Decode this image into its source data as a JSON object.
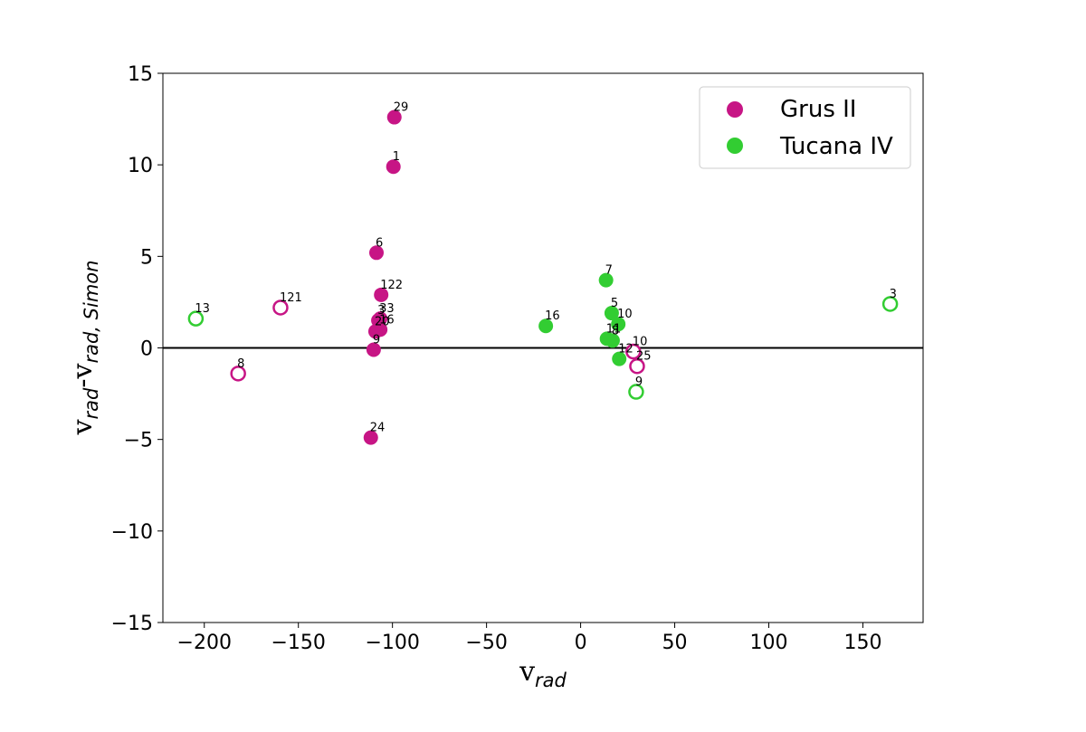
{
  "chart_data": {
    "type": "scatter",
    "title": "",
    "xlabel": {
      "main": "v",
      "sub": "rad"
    },
    "ylabel": {
      "main": "v",
      "sub": "rad",
      "sep": "-",
      "main2": "v",
      "sub2": "rad, Simon"
    },
    "xlim": [
      -222,
      182
    ],
    "ylim": [
      -15,
      15
    ],
    "xticks": [
      {
        "value": -200,
        "label": "−200"
      },
      {
        "value": -150,
        "label": "−150"
      },
      {
        "value": -100,
        "label": "−100"
      },
      {
        "value": -50,
        "label": "−50"
      },
      {
        "value": 0,
        "label": "0"
      },
      {
        "value": 50,
        "label": "50"
      },
      {
        "value": 100,
        "label": "100"
      },
      {
        "value": 150,
        "label": "150"
      }
    ],
    "yticks": [
      {
        "value": -15,
        "label": "−15"
      },
      {
        "value": -10,
        "label": "−10"
      },
      {
        "value": -5,
        "label": "−5"
      },
      {
        "value": 0,
        "label": "0"
      },
      {
        "value": 5,
        "label": "5"
      },
      {
        "value": 10,
        "label": "10"
      },
      {
        "value": 15,
        "label": "15"
      }
    ],
    "zero_line": 0,
    "legend": {
      "position": "top-right"
    },
    "series": [
      {
        "name": "Grus II",
        "color": "#c71585",
        "points": [
          {
            "x": -99,
            "y": 12.6,
            "label": "29",
            "filled": true
          },
          {
            "x": -99.5,
            "y": 9.9,
            "label": "1",
            "filled": true
          },
          {
            "x": -108.5,
            "y": 5.2,
            "label": "6",
            "filled": true
          },
          {
            "x": -106,
            "y": 2.9,
            "label": "122",
            "filled": true
          },
          {
            "x": -106.5,
            "y": 1.6,
            "label": "33",
            "filled": true
          },
          {
            "x": -107.5,
            "y": 1.5,
            "label": "3",
            "filled": true
          },
          {
            "x": -106.5,
            "y": 1.0,
            "label": "16",
            "filled": true
          },
          {
            "x": -109,
            "y": 0.9,
            "label": "20",
            "filled": true
          },
          {
            "x": -110,
            "y": -0.1,
            "label": "9",
            "filled": true
          },
          {
            "x": -111.5,
            "y": -4.9,
            "label": "24",
            "filled": true
          },
          {
            "x": -159.5,
            "y": 2.2,
            "label": "121",
            "filled": false
          },
          {
            "x": -182,
            "y": -1.4,
            "label": "8",
            "filled": false
          },
          {
            "x": 28,
            "y": -0.2,
            "label": "10",
            "filled": false
          },
          {
            "x": 30,
            "y": -1.0,
            "label": "25",
            "filled": false
          }
        ]
      },
      {
        "name": "Tucana IV",
        "color": "#32cd32",
        "points": [
          {
            "x": 13.5,
            "y": 3.7,
            "label": "7",
            "filled": true
          },
          {
            "x": 16.5,
            "y": 1.9,
            "label": "5",
            "filled": true
          },
          {
            "x": 20,
            "y": 1.3,
            "label": "10",
            "filled": true
          },
          {
            "x": -18.5,
            "y": 1.2,
            "label": "16",
            "filled": true
          },
          {
            "x": 14,
            "y": 0.5,
            "label": "11",
            "filled": true
          },
          {
            "x": 17,
            "y": 0.4,
            "label": "8",
            "filled": true
          },
          {
            "x": 20.5,
            "y": -0.6,
            "label": "12",
            "filled": true
          },
          {
            "x": 29.5,
            "y": -2.4,
            "label": "9",
            "filled": false
          },
          {
            "x": 164.5,
            "y": 2.4,
            "label": "3",
            "filled": false
          },
          {
            "x": -204.5,
            "y": 1.6,
            "label": "13",
            "filled": false
          }
        ]
      }
    ]
  }
}
